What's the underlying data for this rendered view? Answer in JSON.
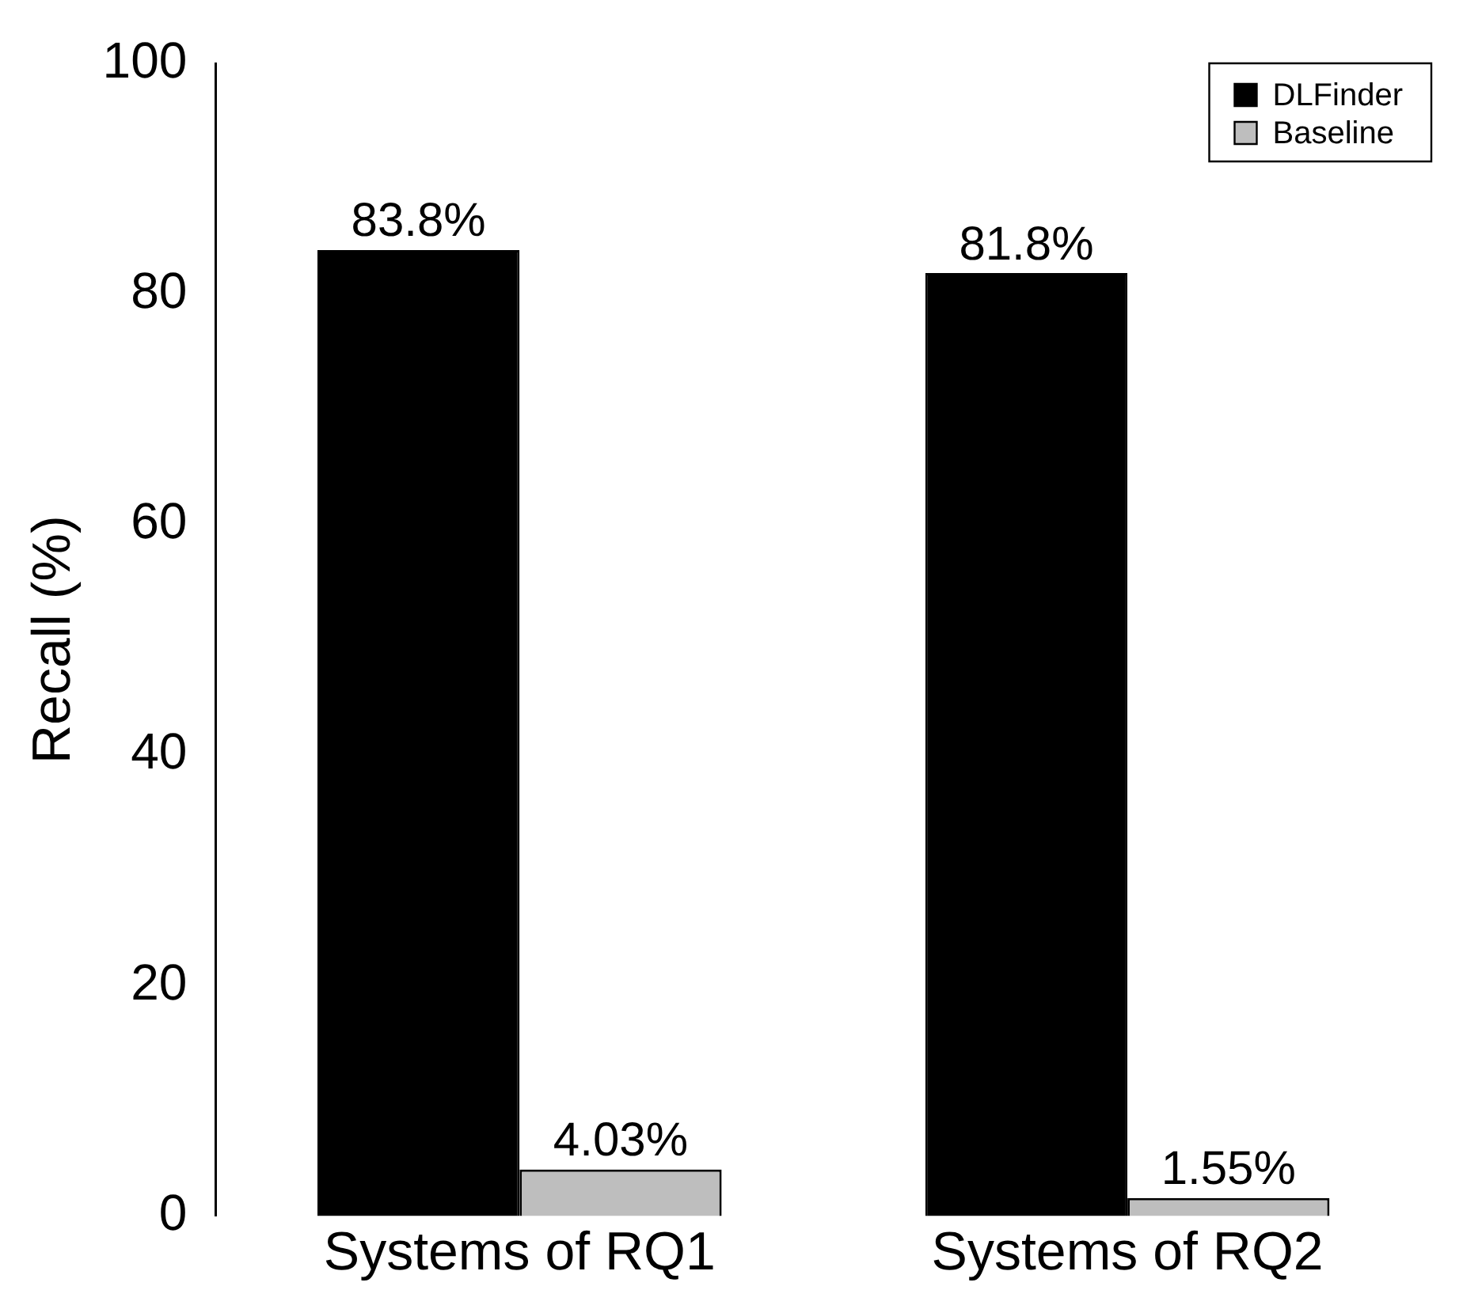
{
  "chart_data": {
    "type": "bar",
    "ylabel": "Recall (%)",
    "categories": [
      "Systems of RQ1",
      "Systems of RQ2"
    ],
    "series": [
      {
        "name": "DLFinder",
        "color": "#000000",
        "values": [
          83.8,
          81.8
        ],
        "value_labels": [
          "83.8%",
          "81.8%"
        ]
      },
      {
        "name": "Baseline",
        "color": "#bebebe",
        "values": [
          4.03,
          1.55
        ],
        "value_labels": [
          "4.03%",
          "1.55%"
        ]
      }
    ],
    "ylim": [
      0,
      100
    ],
    "yticks": [
      0,
      20,
      40,
      60,
      80,
      100
    ],
    "grid": false,
    "legend": "top right"
  }
}
